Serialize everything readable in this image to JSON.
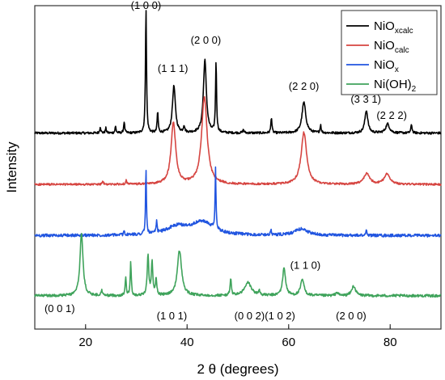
{
  "chart_data": {
    "type": "line",
    "title": "",
    "xlabel": "2 θ (degrees)",
    "ylabel": "Intensity",
    "xlim": [
      10,
      90
    ],
    "ylim": [
      0,
      100
    ],
    "x_ticks": [
      20,
      40,
      60,
      80
    ],
    "y_ticks_shown": false,
    "grid": false,
    "legend_position": "top-right",
    "series": [
      {
        "name": "NiOxcalc",
        "legend_base": "NiO",
        "legend_sub": "xcalc",
        "color": "#000000",
        "baseline": 60.6,
        "noise": 0.35,
        "peaks": [
          {
            "x": 22.9,
            "h": 2.0,
            "w": 0.12
          },
          {
            "x": 24.0,
            "h": 1.5,
            "w": 0.12
          },
          {
            "x": 25.9,
            "h": 2.0,
            "w": 0.12
          },
          {
            "x": 27.6,
            "h": 3.5,
            "w": 0.12
          },
          {
            "x": 31.9,
            "h": 39.0,
            "w": 0.12
          },
          {
            "x": 34.2,
            "h": 6.5,
            "w": 0.12
          },
          {
            "x": 37.4,
            "h": 14.5,
            "w": 0.35
          },
          {
            "x": 39.4,
            "h": 2.0,
            "w": 0.15
          },
          {
            "x": 43.5,
            "h": 22.5,
            "w": 0.35
          },
          {
            "x": 45.7,
            "h": 22.0,
            "w": 0.12
          },
          {
            "x": 51.1,
            "h": 1.0,
            "w": 0.15
          },
          {
            "x": 56.6,
            "h": 5.0,
            "w": 0.12
          },
          {
            "x": 63.0,
            "h": 9.5,
            "w": 0.45
          },
          {
            "x": 66.3,
            "h": 2.5,
            "w": 0.12
          },
          {
            "x": 75.3,
            "h": 7.0,
            "w": 0.35
          },
          {
            "x": 79.5,
            "h": 2.8,
            "w": 0.45
          },
          {
            "x": 84.2,
            "h": 2.5,
            "w": 0.15
          }
        ]
      },
      {
        "name": "NiOcalc",
        "legend_base": "NiO",
        "legend_sub": "calc",
        "color": "#d64541",
        "baseline": 44.7,
        "noise": 0.3,
        "peaks": [
          {
            "x": 23.4,
            "h": 1.0,
            "w": 0.12
          },
          {
            "x": 28.0,
            "h": 1.5,
            "w": 0.12
          },
          {
            "x": 37.3,
            "h": 19.0,
            "w": 0.55
          },
          {
            "x": 43.4,
            "h": 27.0,
            "w": 0.65
          },
          {
            "x": 63.0,
            "h": 16.0,
            "w": 0.65
          },
          {
            "x": 75.4,
            "h": 3.3,
            "w": 0.7
          },
          {
            "x": 79.4,
            "h": 3.2,
            "w": 0.7
          }
        ]
      },
      {
        "name": "NiOx",
        "legend_base": "NiO",
        "legend_sub": "x",
        "color": "#2155e0",
        "baseline": 28.9,
        "noise": 0.45,
        "peaks": [
          {
            "x": 27.6,
            "h": 1.5,
            "w": 0.1
          },
          {
            "x": 31.9,
            "h": 20.5,
            "w": 0.1
          },
          {
            "x": 34.0,
            "h": 3.5,
            "w": 0.1
          },
          {
            "x": 38.0,
            "h": 2.5,
            "w": 2.6
          },
          {
            "x": 43.0,
            "h": 4.0,
            "w": 2.6
          },
          {
            "x": 45.6,
            "h": 18.8,
            "w": 0.1
          },
          {
            "x": 56.5,
            "h": 1.5,
            "w": 0.12
          },
          {
            "x": 62.5,
            "h": 2.0,
            "w": 1.5
          },
          {
            "x": 75.3,
            "h": 1.5,
            "w": 0.15
          }
        ]
      },
      {
        "name": "Ni(OH)2",
        "legend_base": "Ni(OH)",
        "legend_sub": "2",
        "color": "#3fa35b",
        "baseline": 10.3,
        "noise": 0.4,
        "peaks": [
          {
            "x": 19.2,
            "h": 19.5,
            "w": 0.35
          },
          {
            "x": 23.2,
            "h": 1.5,
            "w": 0.15
          },
          {
            "x": 27.9,
            "h": 6.0,
            "w": 0.12
          },
          {
            "x": 28.9,
            "h": 10.5,
            "w": 0.12
          },
          {
            "x": 32.3,
            "h": 12.5,
            "w": 0.18
          },
          {
            "x": 33.1,
            "h": 10.0,
            "w": 0.18
          },
          {
            "x": 33.9,
            "h": 5.0,
            "w": 0.15
          },
          {
            "x": 38.5,
            "h": 14.0,
            "w": 0.5
          },
          {
            "x": 48.6,
            "h": 5.0,
            "w": 0.15
          },
          {
            "x": 52.0,
            "h": 4.0,
            "w": 0.8
          },
          {
            "x": 54.2,
            "h": 1.5,
            "w": 0.15
          },
          {
            "x": 59.1,
            "h": 8.5,
            "w": 0.35
          },
          {
            "x": 62.7,
            "h": 5.0,
            "w": 0.4
          },
          {
            "x": 69.5,
            "h": 1.0,
            "w": 0.3
          },
          {
            "x": 72.8,
            "h": 3.0,
            "w": 0.45
          }
        ]
      }
    ],
    "annotations": [
      {
        "text": "(1 0 0)",
        "x": 31.9,
        "y": 99.0
      },
      {
        "text": "(1 1 1)",
        "x": 37.2,
        "y": 79.5
      },
      {
        "text": "(2 0 0)",
        "x": 43.7,
        "y": 88.2
      },
      {
        "text": "(2 2 0)",
        "x": 63.0,
        "y": 74.0
      },
      {
        "text": "(3 3 1)",
        "x": 75.2,
        "y": 70.0
      },
      {
        "text": "(2 2 2)",
        "x": 80.3,
        "y": 65.0
      },
      {
        "text": "(0 0 1)",
        "x": 14.9,
        "y": 5.3
      },
      {
        "text": "(1 0 1)",
        "x": 37.0,
        "y": 3.0
      },
      {
        "text": "(0 0 2)",
        "x": 52.3,
        "y": 3.0
      },
      {
        "text": "(1 0 2)",
        "x": 58.3,
        "y": 3.0
      },
      {
        "text": "(1 1 0)",
        "x": 63.3,
        "y": 18.6
      },
      {
        "text": "(2 0 0)",
        "x": 72.3,
        "y": 3.0
      }
    ]
  }
}
